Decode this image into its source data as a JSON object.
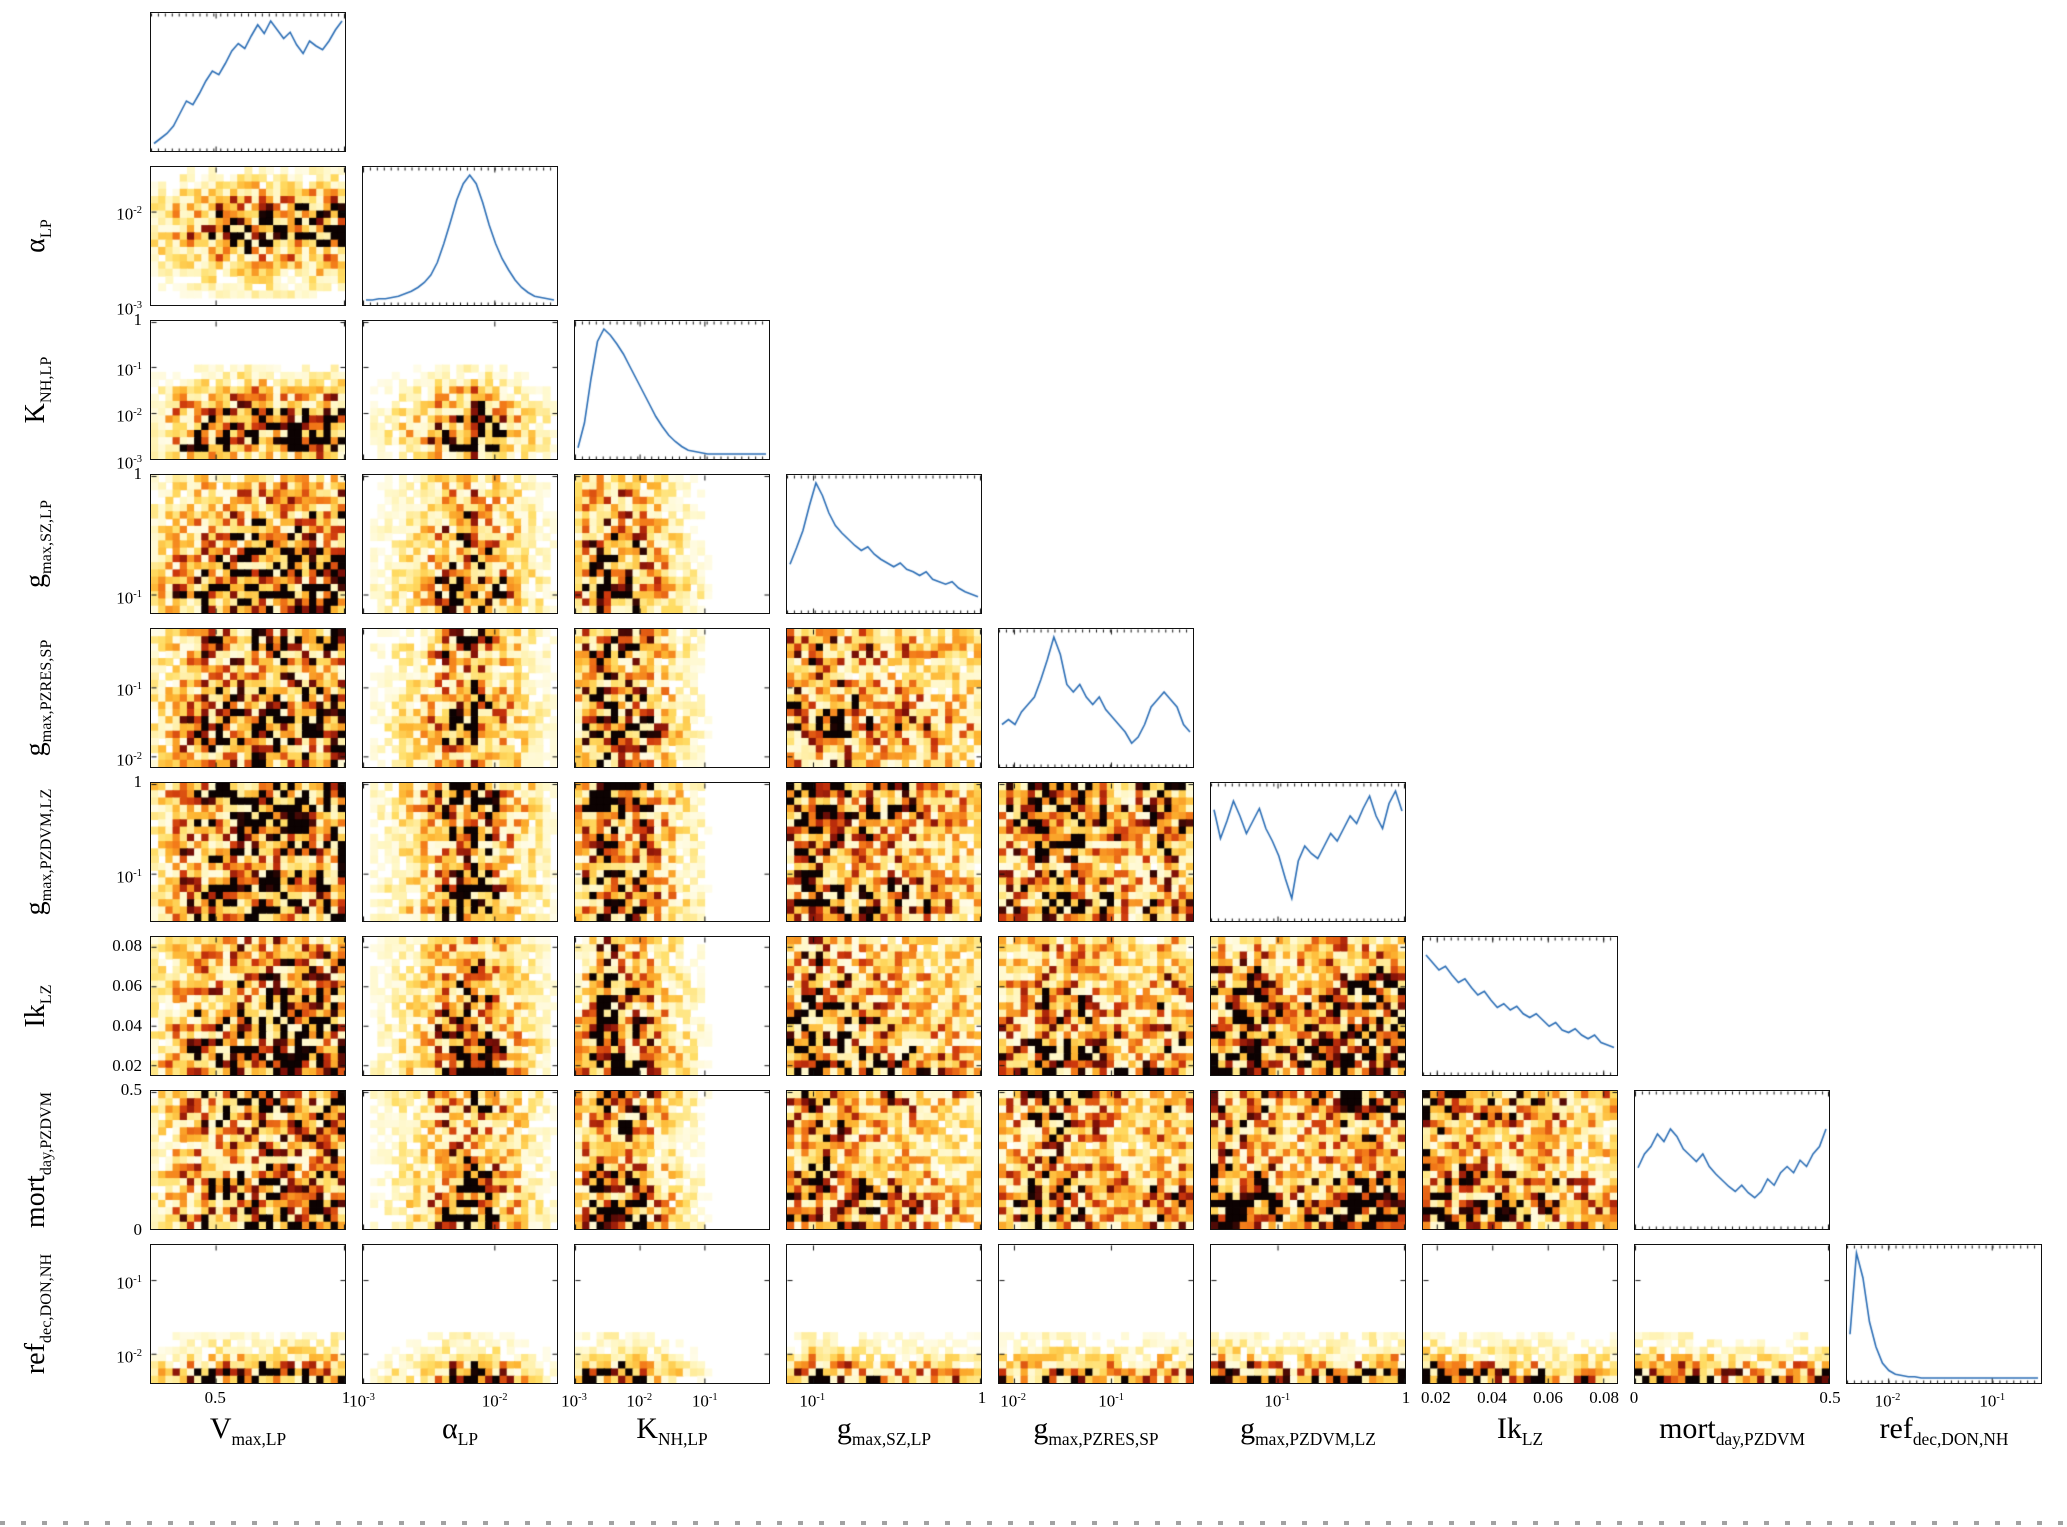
{
  "figure": {
    "background": "#ffffff",
    "accent_line_color": "#2a6db5",
    "panel_border_color": "#111111"
  },
  "chart_data": {
    "type": "heatmap",
    "variant": "corner-plot-lower-triangle",
    "n_params": 9,
    "diagonal": "1-D marginal posterior densities (blue line)",
    "off_diagonal": "2-D joint posterior density histograms",
    "colormap": "white-yellow-orange-red-black (hot reversed)",
    "colormap_stops": [
      [
        0.0,
        255,
        255,
        255
      ],
      [
        0.15,
        255,
        247,
        196
      ],
      [
        0.3,
        255,
        221,
        101
      ],
      [
        0.46,
        253,
        179,
        48
      ],
      [
        0.62,
        242,
        120,
        24
      ],
      [
        0.76,
        203,
        53,
        12
      ],
      [
        0.88,
        128,
        16,
        8
      ],
      [
        1.0,
        12,
        2,
        2
      ]
    ],
    "render": {
      "bins_x": 27,
      "bins_y": 19,
      "noise": 0.55
    },
    "parameters": [
      {
        "id": "Vmax_LP",
        "base": "V",
        "sub": "max,LP",
        "scale": "linear",
        "range": [
          0.25,
          1
        ],
        "ticks": [
          {
            "pos": 0.333,
            "text": "0.5"
          },
          {
            "pos": 1.0,
            "text": "1"
          }
        ],
        "density": [
          0.02,
          0.06,
          0.1,
          0.16,
          0.26,
          0.36,
          0.33,
          0.42,
          0.52,
          0.6,
          0.57,
          0.66,
          0.76,
          0.82,
          0.78,
          0.88,
          0.97,
          0.9,
          1.0,
          0.93,
          0.86,
          0.91,
          0.81,
          0.74,
          0.84,
          0.8,
          0.77,
          0.84,
          0.93,
          1.0
        ]
      },
      {
        "id": "alpha_LP",
        "base": "α",
        "sub": "LP",
        "scale": "log",
        "range": [
          0.001,
          0.03
        ],
        "ticks": [
          {
            "pos": 0.0,
            "text": "10",
            "exp": "-3"
          },
          {
            "pos": 0.677,
            "text": "10",
            "exp": "-2"
          }
        ],
        "density": [
          0.0,
          0.0,
          0.01,
          0.01,
          0.02,
          0.03,
          0.05,
          0.07,
          0.1,
          0.14,
          0.2,
          0.3,
          0.45,
          0.62,
          0.8,
          0.93,
          1.0,
          0.93,
          0.78,
          0.6,
          0.45,
          0.33,
          0.24,
          0.16,
          0.1,
          0.06,
          0.03,
          0.02,
          0.01,
          0.0
        ]
      },
      {
        "id": "K_NH_LP",
        "base": "K",
        "sub": "NH,LP",
        "scale": "log",
        "range": [
          0.001,
          1
        ],
        "ticks": [
          {
            "pos": 0.0,
            "text": "10",
            "exp": "-3"
          },
          {
            "pos": 0.333,
            "text": "10",
            "exp": "-2"
          },
          {
            "pos": 0.667,
            "text": "10",
            "exp": "-1"
          }
        ],
        "yticks": [
          {
            "pos": 0.0,
            "text": "10",
            "exp": "-3"
          },
          {
            "pos": 0.333,
            "text": "10",
            "exp": "-2"
          },
          {
            "pos": 0.667,
            "text": "10",
            "exp": "-1"
          },
          {
            "pos": 1.0,
            "text": "1"
          }
        ],
        "density": [
          0.05,
          0.25,
          0.6,
          0.9,
          1.0,
          0.95,
          0.88,
          0.8,
          0.7,
          0.6,
          0.5,
          0.4,
          0.3,
          0.22,
          0.15,
          0.1,
          0.06,
          0.03,
          0.02,
          0.01,
          0.0,
          0.0,
          0.0,
          0.0,
          0.0,
          0.0,
          0.0,
          0.0,
          0.0,
          0.0
        ]
      },
      {
        "id": "g_max_SZ_LP",
        "base": "g",
        "sub": "max,SZ,LP",
        "scale": "log",
        "range": [
          0.07,
          1
        ],
        "ticks": [
          {
            "pos": 0.134,
            "text": "10",
            "exp": "-1"
          },
          {
            "pos": 1.0,
            "text": "1"
          }
        ],
        "yticks": [
          {
            "pos": 0.134,
            "text": "10",
            "exp": "-1"
          },
          {
            "pos": 1.0,
            "text": "1"
          }
        ],
        "density": [
          0.35,
          0.48,
          0.62,
          0.82,
          1.0,
          0.9,
          0.76,
          0.66,
          0.6,
          0.55,
          0.5,
          0.46,
          0.49,
          0.43,
          0.39,
          0.36,
          0.33,
          0.36,
          0.31,
          0.29,
          0.26,
          0.29,
          0.23,
          0.21,
          0.19,
          0.21,
          0.16,
          0.13,
          0.11,
          0.09
        ]
      },
      {
        "id": "g_max_PZRES_SP",
        "base": "g",
        "sub": "max,PZRES,SP",
        "scale": "log",
        "range": [
          0.007,
          0.7
        ],
        "ticks": [
          {
            "pos": 0.077,
            "text": "10",
            "exp": "-2"
          },
          {
            "pos": 0.577,
            "text": "10",
            "exp": "-1"
          }
        ],
        "density": [
          0.3,
          0.34,
          0.3,
          0.4,
          0.46,
          0.52,
          0.66,
          0.82,
          1.0,
          0.86,
          0.62,
          0.56,
          0.62,
          0.52,
          0.46,
          0.52,
          0.42,
          0.36,
          0.3,
          0.24,
          0.15,
          0.2,
          0.3,
          0.44,
          0.5,
          0.56,
          0.5,
          0.44,
          0.3,
          0.24
        ]
      },
      {
        "id": "g_max_PZDVM_LZ",
        "base": "g",
        "sub": "max,PZDVM,LZ",
        "scale": "log",
        "range": [
          0.03,
          1
        ],
        "ticks": [
          {
            "pos": 0.343,
            "text": "10",
            "exp": "-1"
          },
          {
            "pos": 1.0,
            "text": "1"
          }
        ],
        "yticks": [
          {
            "pos": 0.343,
            "text": "10",
            "exp": "-1"
          },
          {
            "pos": 1.0,
            "text": "1"
          }
        ],
        "density": [
          0.85,
          0.62,
          0.76,
          0.92,
          0.8,
          0.66,
          0.76,
          0.86,
          0.7,
          0.6,
          0.48,
          0.3,
          0.14,
          0.44,
          0.56,
          0.5,
          0.46,
          0.56,
          0.66,
          0.6,
          0.7,
          0.8,
          0.74,
          0.86,
          0.96,
          0.8,
          0.7,
          0.9,
          1.0,
          0.84
        ]
      },
      {
        "id": "Ik_LZ",
        "base": "Ik",
        "sub": "LZ",
        "scale": "linear",
        "range": [
          0.015,
          0.085
        ],
        "ticks": [
          {
            "pos": 0.071,
            "text": "0.02"
          },
          {
            "pos": 0.357,
            "text": "0.04"
          },
          {
            "pos": 0.643,
            "text": "0.06"
          },
          {
            "pos": 0.929,
            "text": "0.08"
          }
        ],
        "density": [
          0.92,
          0.86,
          0.8,
          0.83,
          0.76,
          0.7,
          0.73,
          0.66,
          0.6,
          0.63,
          0.56,
          0.5,
          0.53,
          0.48,
          0.51,
          0.45,
          0.42,
          0.45,
          0.4,
          0.35,
          0.38,
          0.32,
          0.3,
          0.33,
          0.28,
          0.25,
          0.28,
          0.22,
          0.2,
          0.18
        ]
      },
      {
        "id": "mort_day_PZDVM",
        "base": "mort",
        "sub": "day,PZDVM",
        "scale": "linear",
        "range": [
          0,
          0.5
        ],
        "ticks": [
          {
            "pos": 0.0,
            "text": "0"
          },
          {
            "pos": 1.0,
            "text": "0.5"
          }
        ],
        "density": [
          0.45,
          0.56,
          0.62,
          0.72,
          0.66,
          0.76,
          0.7,
          0.6,
          0.55,
          0.5,
          0.56,
          0.46,
          0.4,
          0.35,
          0.3,
          0.26,
          0.31,
          0.25,
          0.21,
          0.26,
          0.36,
          0.31,
          0.41,
          0.46,
          0.41,
          0.51,
          0.46,
          0.56,
          0.62,
          0.76
        ]
      },
      {
        "id": "ref_dec_DON_NH",
        "base": "ref",
        "sub": "dec,DON,NH",
        "scale": "log",
        "range": [
          0.004,
          0.3
        ],
        "ticks": [
          {
            "pos": 0.212,
            "text": "10",
            "exp": "-2"
          },
          {
            "pos": 0.746,
            "text": "10",
            "exp": "-1"
          }
        ],
        "density": [
          0.35,
          1.0,
          0.8,
          0.45,
          0.25,
          0.12,
          0.06,
          0.03,
          0.02,
          0.01,
          0.01,
          0.0,
          0.0,
          0.0,
          0.0,
          0.0,
          0.0,
          0.0,
          0.0,
          0.0,
          0.0,
          0.0,
          0.0,
          0.0,
          0.0,
          0.0,
          0.0,
          0.0,
          0.0,
          0.0
        ]
      }
    ]
  }
}
